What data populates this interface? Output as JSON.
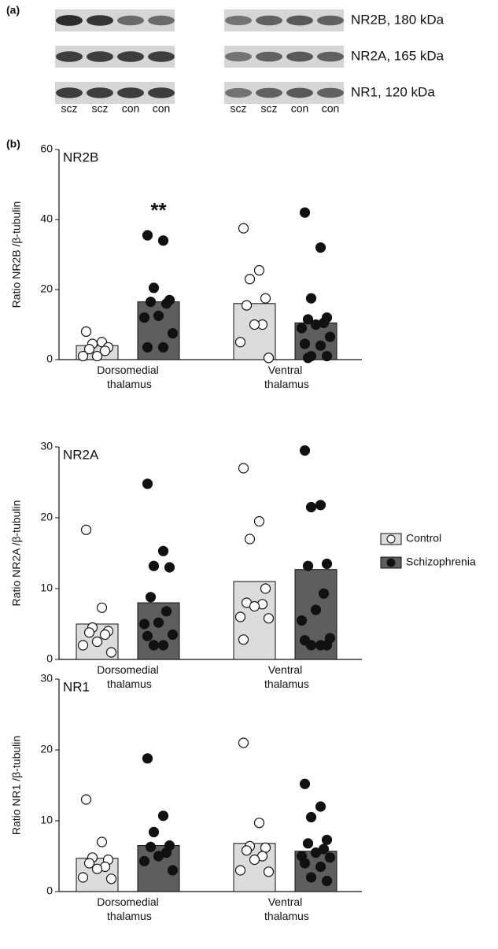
{
  "blot": {
    "panel_label": "(a)",
    "bands": [
      "NR2B, 180 kDa",
      "NR2A, 165 kDa",
      "NR1, 120 kDa"
    ],
    "lanes_left": [
      "scz",
      "scz",
      "con",
      "con"
    ],
    "lanes_right": [
      "scz",
      "scz",
      "con",
      "con"
    ]
  },
  "panel_b_label": "(b)",
  "chart_data": [
    {
      "type": "bar",
      "title": "NR2B",
      "ylabel": "Ratio NR2B /β-tubulin",
      "annotation": "**",
      "categories": [
        "Dorsomedial thalamus",
        "Ventral thalamus"
      ],
      "ylim": [
        0,
        60
      ],
      "yticks": [
        0,
        20,
        40,
        60
      ],
      "series": [
        {
          "name": "Control",
          "color": "#dcdcdc",
          "point_color": "#ffffff",
          "values": [
            4,
            16
          ],
          "points": [
            [
              8,
              5,
              4.5,
              3.5,
              3,
              2.5,
              1,
              1
            ],
            [
              37.5,
              25.5,
              23,
              17.5,
              15.5,
              10,
              10,
              5,
              0.5
            ]
          ]
        },
        {
          "name": "Schizophrenia",
          "color": "#5e5e5e",
          "point_color": "#111111",
          "values": [
            16.5,
            10.5
          ],
          "points": [
            [
              35.5,
              34,
              20.5,
              17,
              16.5,
              16,
              12.5,
              12,
              7.5,
              3.5,
              3.5
            ],
            [
              42,
              32,
              17.5,
              12,
              11.5,
              10.5,
              10,
              9,
              6.5,
              4.5,
              4,
              1,
              1,
              0.5
            ]
          ]
        }
      ]
    },
    {
      "type": "bar",
      "title": "NR2A",
      "ylabel": "Ratio NR2A /β-tubulin",
      "categories": [
        "Dorsomedial thalamus",
        "Ventral thalamus"
      ],
      "ylim": [
        0,
        30
      ],
      "yticks": [
        0,
        10,
        20,
        30
      ],
      "series": [
        {
          "name": "Control",
          "color": "#dcdcdc",
          "point_color": "#ffffff",
          "values": [
            5,
            11
          ],
          "points": [
            [
              18.3,
              7.3,
              4.5,
              4,
              3.8,
              3.5,
              2.5,
              2,
              1
            ],
            [
              27,
              19.5,
              17,
              10,
              8,
              7.8,
              7.5,
              6,
              5.8,
              2.8
            ]
          ]
        },
        {
          "name": "Schizophrenia",
          "color": "#5e5e5e",
          "point_color": "#111111",
          "values": [
            8,
            12.7
          ],
          "points": [
            [
              24.8,
              15.3,
              13.2,
              13,
              8.8,
              6.8,
              5.2,
              5,
              3.5,
              3.3,
              2,
              2
            ],
            [
              29.5,
              21.8,
              21.5,
              13.5,
              13.2,
              9.3,
              7,
              5.5,
              3,
              2.7,
              2,
              2,
              2
            ]
          ]
        }
      ]
    },
    {
      "type": "bar",
      "title": "NR1",
      "ylabel": "Ratio NR1 /β-tubulin",
      "categories": [
        "Dorsomedial thalamus",
        "Ventral thalamus"
      ],
      "ylim": [
        0,
        30
      ],
      "yticks": [
        0,
        10,
        20,
        30
      ],
      "series": [
        {
          "name": "Control",
          "color": "#dcdcdc",
          "point_color": "#ffffff",
          "values": [
            4.7,
            6.8
          ],
          "points": [
            [
              13,
              7,
              4.8,
              4.5,
              4,
              3.5,
              3.2,
              2,
              1.8
            ],
            [
              21,
              9.7,
              6.4,
              6.2,
              5.8,
              5,
              4.5,
              3,
              2.8
            ]
          ]
        },
        {
          "name": "Schizophrenia",
          "color": "#5e5e5e",
          "point_color": "#111111",
          "values": [
            6.5,
            5.7
          ],
          "points": [
            [
              18.8,
              10.7,
              8.4,
              6.5,
              6.3,
              5.5,
              5,
              4.3,
              3
            ],
            [
              15.2,
              12,
              10.5,
              7.3,
              6.8,
              6,
              5.5,
              5,
              4.8,
              4,
              3.5,
              2,
              1.5
            ]
          ]
        }
      ]
    }
  ]
}
